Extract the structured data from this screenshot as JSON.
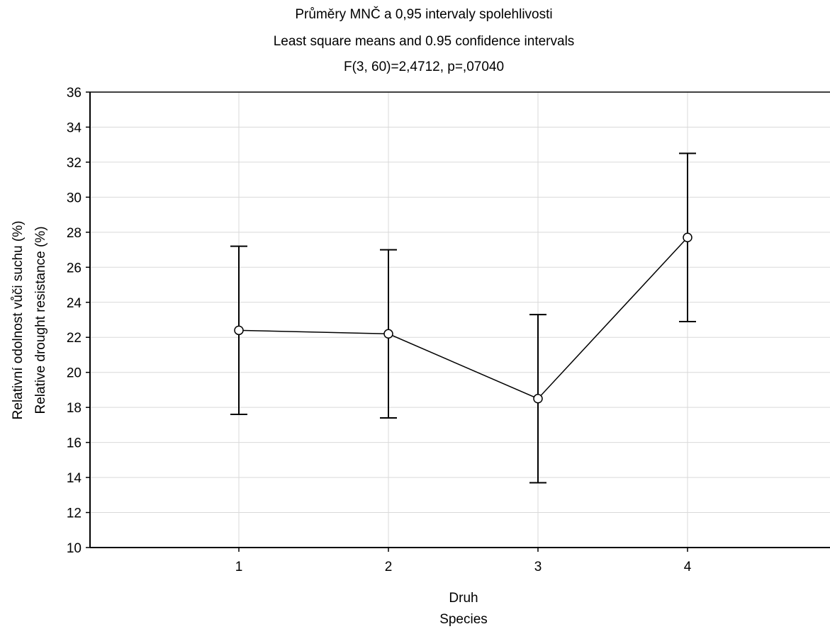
{
  "chart_data": {
    "type": "line",
    "title": [
      "Průměry MNČ a 0,95 intervaly spolehlivosti",
      "Least square means and 0.95 confidence intervals",
      "F(3, 60)=2,4712, p=,07040"
    ],
    "xlabel": [
      "Druh",
      "Species"
    ],
    "ylabel": [
      "Relativní odolnost vůči suchu (%)",
      "Relative drought resistance (%)"
    ],
    "categories": [
      "1",
      "2",
      "3",
      "4"
    ],
    "series": [
      {
        "values": [
          22.4,
          22.2,
          18.5,
          27.7
        ],
        "ci_lower": [
          17.6,
          17.4,
          13.7,
          22.9
        ],
        "ci_upper": [
          27.2,
          27.0,
          23.3,
          32.5
        ]
      }
    ],
    "ylim": [
      10,
      36
    ],
    "yticks": [
      "10",
      "12",
      "14",
      "16",
      "18",
      "20",
      "22",
      "24",
      "26",
      "28",
      "30",
      "32",
      "34",
      "36"
    ],
    "grid": true,
    "colors": {
      "line": "#000000",
      "grid": "#d9d9d9",
      "axis": "#000000"
    }
  }
}
